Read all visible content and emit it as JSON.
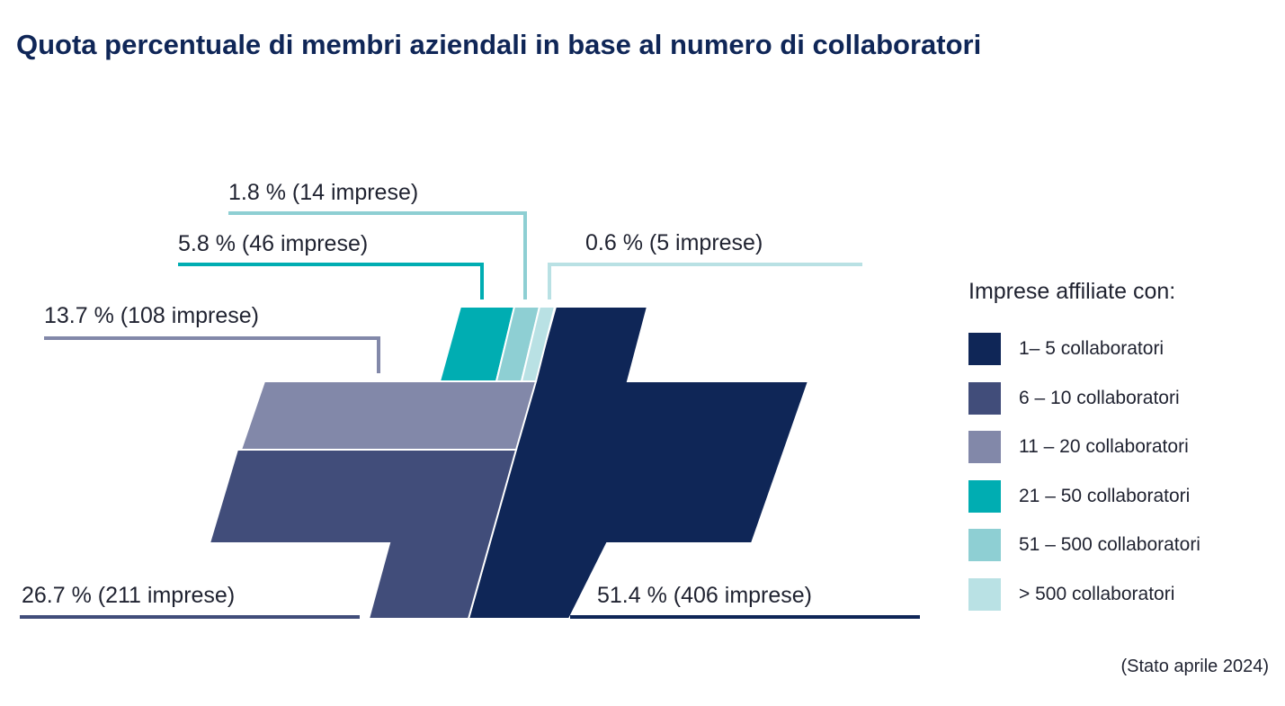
{
  "chart_data": {
    "type": "pie",
    "title": "Quota percentuale di membri aziendali in base al numero di collaboratori",
    "legend_title": "Imprese affiliate con:",
    "legend_position": "right",
    "note": "(Stato aprile 2024)",
    "segments": [
      {
        "name": "1– 5 collaboratori",
        "percent": 51.4,
        "count": 406,
        "label": "51.4 % (406 imprese)",
        "color": "#0f2657"
      },
      {
        "name": "6 – 10 collaboratori",
        "percent": 26.7,
        "count": 211,
        "label": "26.7 % (211 imprese)",
        "color": "#414d7a"
      },
      {
        "name": "11 – 20 collaboratori",
        "percent": 13.7,
        "count": 108,
        "label": "13.7 % (108 imprese)",
        "color": "#8288a9"
      },
      {
        "name": "21 – 50 collaboratori",
        "percent": 5.8,
        "count": 46,
        "label": "5.8 % (46 imprese)",
        "color": "#00adb2"
      },
      {
        "name": "51 – 500 collaboratori",
        "percent": 1.8,
        "count": 14,
        "label": "1.8 % (14 imprese)",
        "color": "#8ecfd3"
      },
      {
        "name": "> 500 collaboratori",
        "percent": 0.6,
        "count": 5,
        "label": "0.6 % (5 imprese)",
        "color": "#b9e1e4"
      }
    ]
  }
}
